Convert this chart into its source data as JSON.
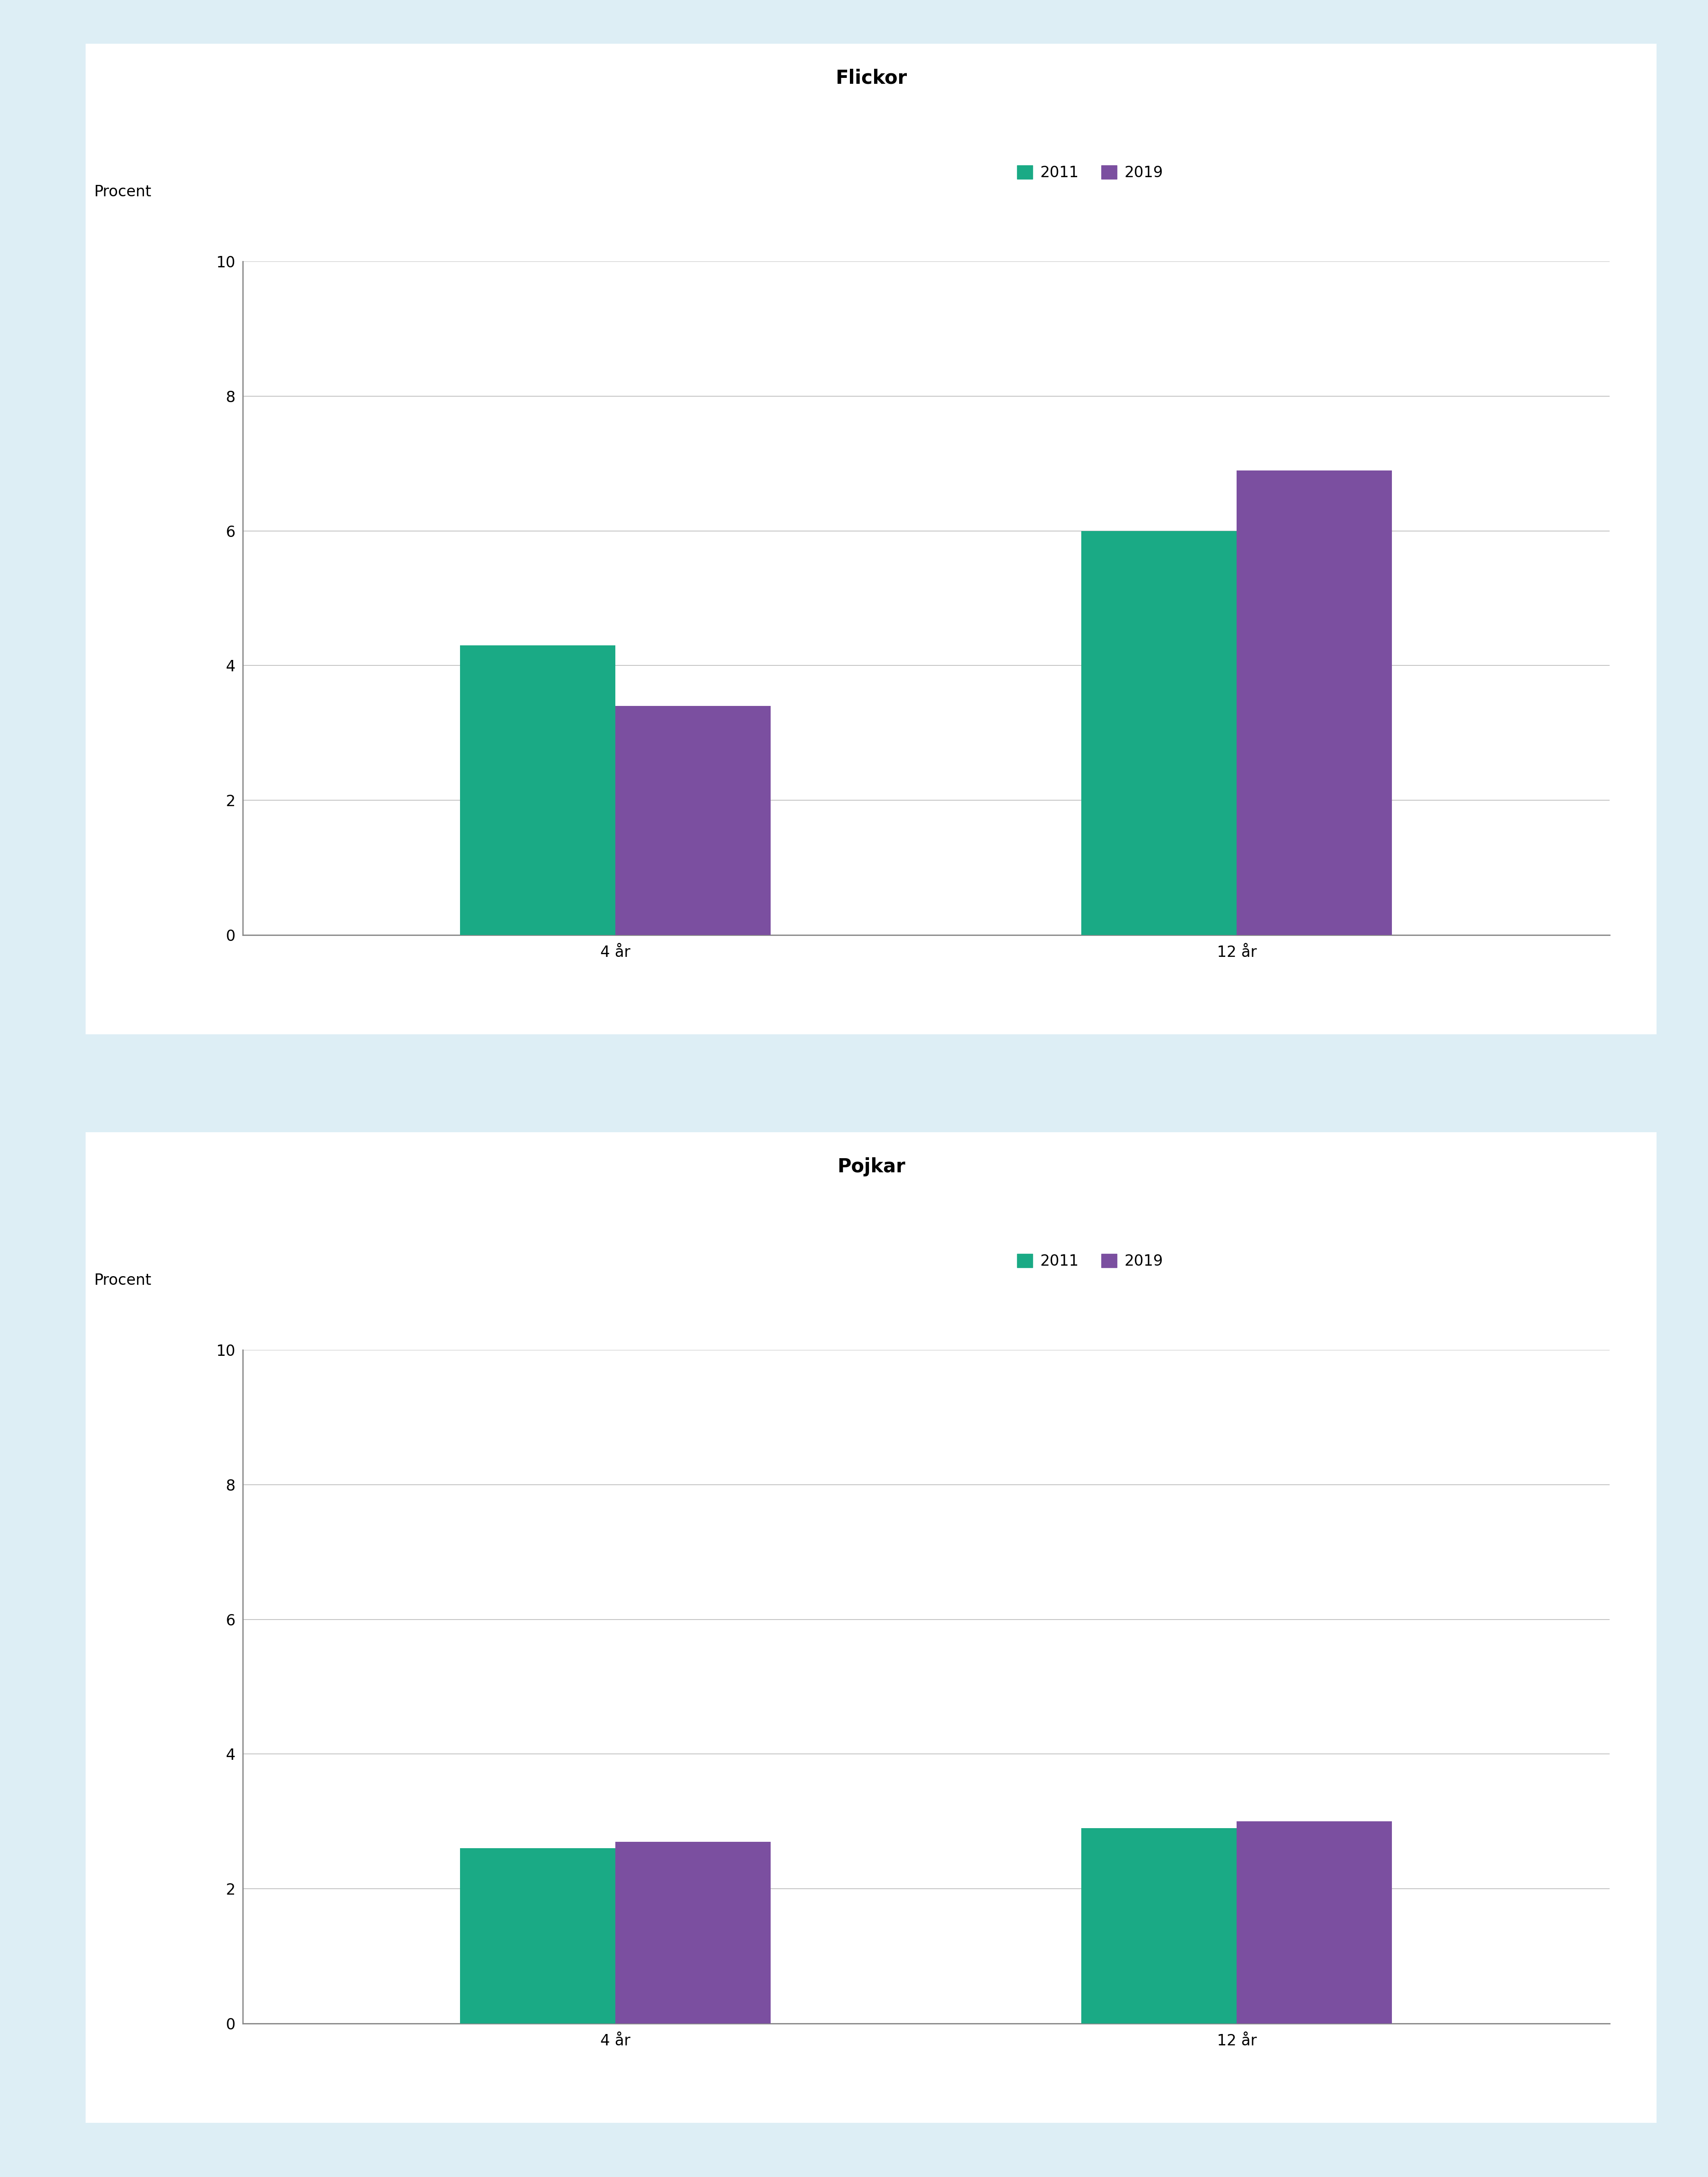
{
  "flickor_title": "Flickor",
  "pojkar_title": "Pojkar",
  "categories": [
    "4 år",
    "12 år"
  ],
  "flickor_2011": [
    4.3,
    6.0
  ],
  "flickor_2019": [
    3.4,
    6.9
  ],
  "pojkar_2011": [
    2.6,
    2.9
  ],
  "pojkar_2019": [
    2.7,
    3.0
  ],
  "color_2011": "#1aaa85",
  "color_2019": "#7b4fa0",
  "ylabel": "Procent",
  "ylim": [
    0,
    10
  ],
  "yticks": [
    0,
    2,
    4,
    6,
    8,
    10
  ],
  "legend_labels": [
    "2011",
    "2019"
  ],
  "background_color": "#ddeef5",
  "panel_color": "#ffffff",
  "bar_width": 0.25,
  "title_fontsize": 30,
  "label_fontsize": 24,
  "tick_fontsize": 24,
  "legend_fontsize": 24,
  "axis_color": "#888888"
}
